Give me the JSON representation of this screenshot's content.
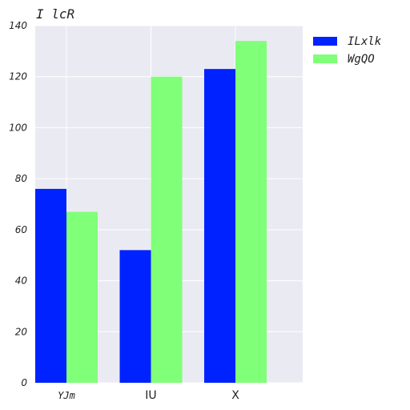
{
  "chart_data": {
    "type": "bar",
    "title": "I lcR",
    "xlabel": "",
    "ylabel": "",
    "categories": [
      "YJm",
      "IU",
      "X"
    ],
    "series": [
      {
        "name": "ILxlk",
        "values": [
          76,
          52,
          123
        ],
        "color": "#0022ff"
      },
      {
        "name": "WgQO",
        "values": [
          67,
          120,
          134
        ],
        "color": "#80ff78"
      }
    ],
    "ylim": [
      0,
      140
    ],
    "yticks": [
      "0",
      "20",
      "40",
      "60",
      "80",
      "100",
      "120",
      "140"
    ],
    "grid": true,
    "legend": "top-right outside"
  }
}
